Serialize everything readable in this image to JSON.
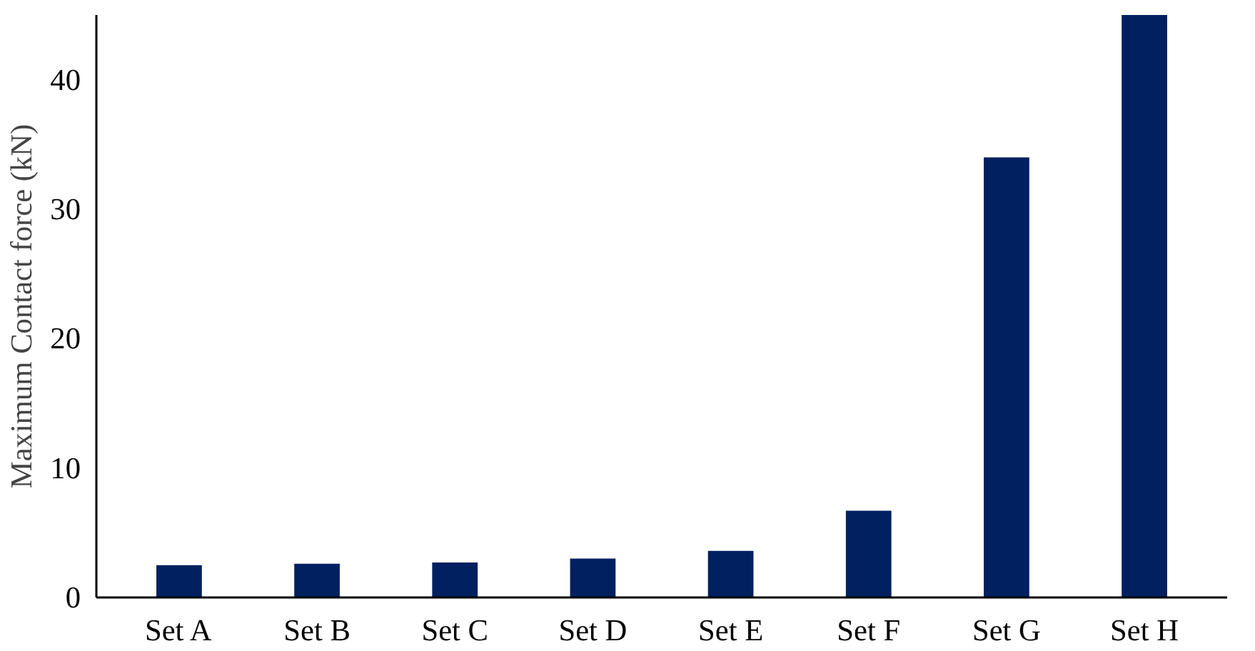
{
  "chart_data": {
    "type": "bar",
    "ylabel": "Maximum Contact force (kN)",
    "categories": [
      "Set A",
      "Set B",
      "Set C",
      "Set D",
      "Set E",
      "Set F",
      "Set G",
      "Set H"
    ],
    "values": [
      2.5,
      2.6,
      2.7,
      3.0,
      3.6,
      6.7,
      34,
      45
    ],
    "color": "#012060",
    "ylim": [
      0,
      45
    ],
    "yticks": [
      0,
      10,
      20,
      30,
      40
    ],
    "grid": false
  }
}
